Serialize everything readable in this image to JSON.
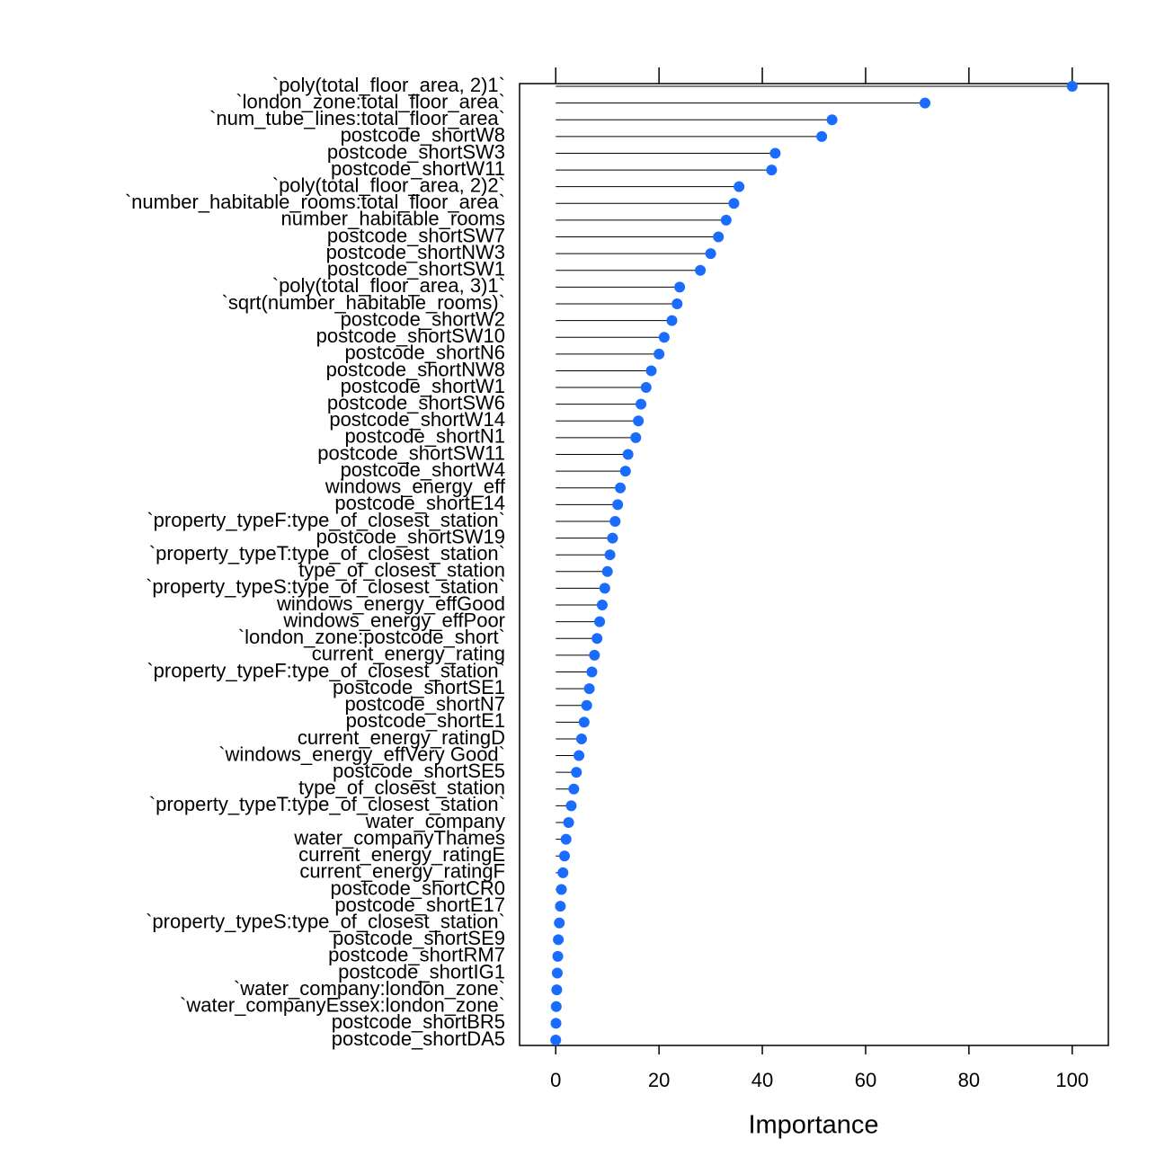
{
  "chart_data": {
    "type": "dotplot",
    "xlabel": "Importance",
    "xlim": [
      -7,
      107
    ],
    "xticks": [
      0,
      20,
      40,
      60,
      80,
      100
    ],
    "color": "#1a6cff",
    "categories": [
      "`poly(total_floor_area, 2)1`",
      "`london_zone:total_floor_area`",
      "`num_tube_lines:total_floor_area`",
      "postcode_shortW8",
      "postcode_shortSW3",
      "postcode_shortW11",
      "`poly(total_floor_area, 2)2`",
      "`number_habitable_rooms:total_floor_area`",
      "number_habitable_rooms",
      "postcode_shortSW7",
      "postcode_shortNW3",
      "postcode_shortSW1",
      "`poly(total_floor_area, 3)1`",
      "`sqrt(number_habitable_rooms)`",
      "postcode_shortW2",
      "postcode_shortSW10",
      "postcode_shortN6",
      "postcode_shortNW8",
      "postcode_shortW1",
      "postcode_shortSW6",
      "postcode_shortW14",
      "postcode_shortN1",
      "postcode_shortSW11",
      "postcode_shortW4",
      "windows_energy_eff",
      "postcode_shortE14",
      "`property_typeF:type_of_closest_station`",
      "postcode_shortSW19",
      "`property_typeT:type_of_closest_station`",
      "type_of_closest_station",
      "`property_typeS:type_of_closest_station`",
      "windows_energy_effGood",
      "windows_energy_effPoor",
      "`london_zone:postcode_short`",
      "current_energy_rating",
      "`property_typeF:type_of_closest_station`",
      "postcode_shortSE1",
      "postcode_shortN7",
      "postcode_shortE1",
      "current_energy_ratingD",
      "`windows_energy_effVery Good`",
      "postcode_shortSE5",
      "type_of_closest_station",
      "`property_typeT:type_of_closest_station`",
      "water_company",
      "water_companyThames",
      "current_energy_ratingE",
      "current_energy_ratingF",
      "postcode_shortCR0",
      "postcode_shortE17",
      "`property_typeS:type_of_closest_station`",
      "postcode_shortSE9",
      "postcode_shortRM7",
      "postcode_shortIG1",
      "`water_company:london_zone`",
      "`water_companyEssex:london_zone`",
      "postcode_shortBR5",
      "postcode_shortDA5"
    ],
    "values": [
      100,
      71.5,
      53.5,
      51.5,
      42.5,
      41.8,
      35.5,
      34.5,
      33,
      31.5,
      30,
      28,
      24,
      23.5,
      22.5,
      21,
      20,
      18.5,
      17.5,
      16.5,
      16,
      15.5,
      14,
      13.5,
      12.5,
      12,
      11.5,
      11,
      10.5,
      10,
      9.5,
      9,
      8.5,
      8,
      7.5,
      7,
      6.5,
      6,
      5.5,
      5,
      4.5,
      4,
      3.5,
      3,
      2.5,
      2,
      1.7,
      1.4,
      1.1,
      0.9,
      0.7,
      0.5,
      0.4,
      0.3,
      0.2,
      0.1,
      0.05,
      0
    ]
  }
}
